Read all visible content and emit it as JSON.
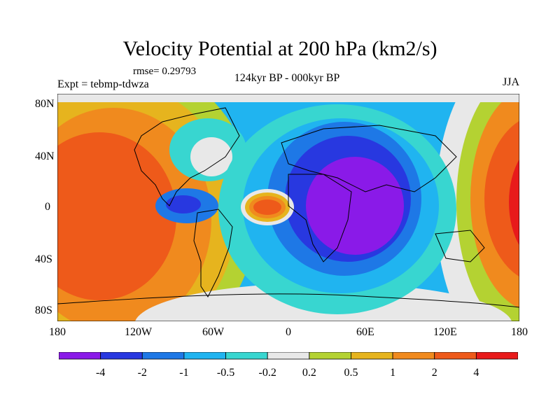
{
  "title": "Velocity Potential at 200 hPa (km2/s)",
  "rmse_label": "rmse= 0.29793",
  "experiment_label": "Expt = tebmp-tdwza",
  "period_label": "124kyr BP - 000kyr BP",
  "season_label": "JJA",
  "lat_ticks": [
    "80N",
    "40N",
    "0",
    "40S",
    "80S"
  ],
  "lon_ticks": [
    "180",
    "120W",
    "60W",
    "0",
    "60E",
    "120E",
    "180"
  ],
  "colorbar": {
    "colors": [
      "#8a1ae8",
      "#2838e0",
      "#1e78e6",
      "#20b4f0",
      "#38d6d0",
      "#e8e8e8",
      "#b4d232",
      "#e6b41e",
      "#f08a1e",
      "#ee5a1a",
      "#e81a1a"
    ],
    "labels": [
      "-4",
      "-2",
      "-1",
      "-0.5",
      "-0.2",
      "0.2",
      "0.5",
      "1",
      "2",
      "4"
    ]
  }
}
